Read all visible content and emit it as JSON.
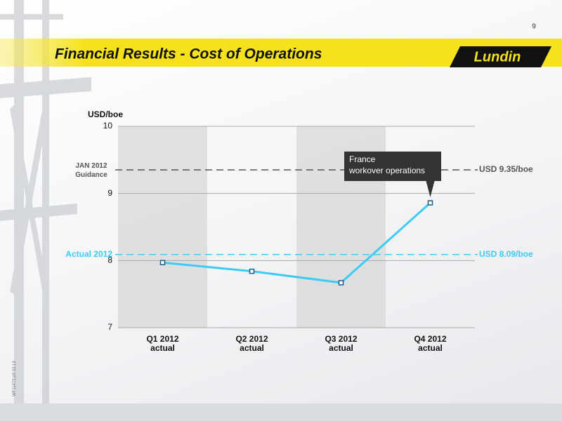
{
  "chart_data": {
    "type": "line",
    "title": "Financial Results - Cost of Operations",
    "page_number": "9",
    "logo": "Lundin",
    "footer_code": "WF11473 p9 03.13",
    "y_label": "USD/boe",
    "categories": [
      "Q1 2012 actual",
      "Q2 2012 actual",
      "Q3 2012 actual",
      "Q4 2012 actual"
    ],
    "values": [
      7.97,
      7.84,
      7.67,
      8.86
    ],
    "color": "#3ccbf4",
    "marker_color": "#1a5d8c",
    "ylim": [
      7,
      10
    ],
    "yticks": [
      7,
      8,
      9,
      10
    ],
    "grid": true,
    "reference_lines": [
      {
        "value": 9.35,
        "label": "JAN 2012 Guidance",
        "value_label": "USD 9.35/boe",
        "color": "#555555"
      },
      {
        "value": 8.09,
        "label": "Actual 2012",
        "value_label": "USD 8.09/boe",
        "color": "#3ccbf4"
      }
    ],
    "annotation": [
      "France",
      "workover operations"
    ]
  }
}
